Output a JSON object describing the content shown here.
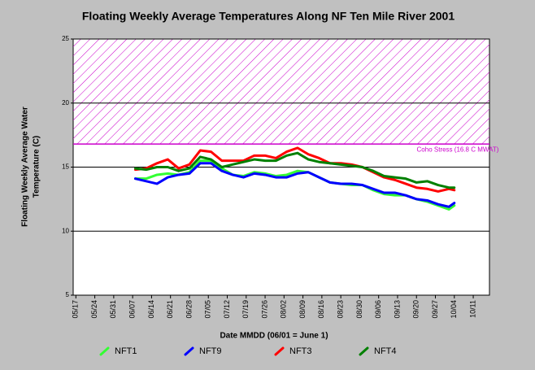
{
  "chart_data": {
    "type": "line",
    "title": "Floating Weekly Average Temperatures Along NF Ten Mile River 2001",
    "y_label": [
      "Floating Weekly Average Water",
      "Temperature (C)"
    ],
    "x_label": "Date MMDD (06/01 = June 1)",
    "ylim": [
      5,
      25
    ],
    "yticks": [
      5,
      10,
      15,
      20,
      25
    ],
    "xlim": [
      136,
      290
    ],
    "xticks": [
      {
        "value": 137,
        "label": "05/17"
      },
      {
        "value": 144,
        "label": "05/24"
      },
      {
        "value": 151,
        "label": "05/31"
      },
      {
        "value": 158,
        "label": "06/07"
      },
      {
        "value": 165,
        "label": "06/14"
      },
      {
        "value": 172,
        "label": "06/21"
      },
      {
        "value": 179,
        "label": "06/28"
      },
      {
        "value": 186,
        "label": "07/05"
      },
      {
        "value": 193,
        "label": "07/12"
      },
      {
        "value": 200,
        "label": "07/19"
      },
      {
        "value": 207,
        "label": "07/26"
      },
      {
        "value": 214,
        "label": "08/02"
      },
      {
        "value": 221,
        "label": "08/09"
      },
      {
        "value": 228,
        "label": "08/16"
      },
      {
        "value": 235,
        "label": "08/23"
      },
      {
        "value": 242,
        "label": "08/30"
      },
      {
        "value": 249,
        "label": "09/06"
      },
      {
        "value": 256,
        "label": "09/13"
      },
      {
        "value": 263,
        "label": "09/20"
      },
      {
        "value": 270,
        "label": "09/27"
      },
      {
        "value": 277,
        "label": "10/04"
      },
      {
        "value": 284,
        "label": "10/11"
      }
    ],
    "grid": true,
    "bands": [
      {
        "from": 16.8,
        "to": 25,
        "label": "Coho Stress (16.8 C MWAT)",
        "color": "#cc00cc"
      }
    ],
    "x": [
      159,
      163,
      167,
      171,
      175,
      179,
      183,
      187,
      191,
      195,
      199,
      203,
      207,
      211,
      215,
      219,
      223,
      227,
      231,
      235,
      239,
      243,
      247,
      251,
      255,
      259,
      263,
      267,
      271,
      275,
      277
    ],
    "series": [
      {
        "name": "NFT1",
        "color": "#33ff33",
        "values": [
          14.1,
          14.1,
          14.4,
          14.5,
          14.4,
          14.6,
          15.5,
          15.5,
          14.9,
          14.4,
          14.3,
          14.6,
          14.5,
          14.3,
          14.4,
          14.7,
          14.6,
          14.2,
          13.8,
          13.7,
          13.6,
          13.6,
          13.2,
          12.9,
          12.8,
          12.8,
          12.5,
          12.3,
          12.0,
          11.7,
          12.0
        ]
      },
      {
        "name": "NFT9",
        "color": "#0000ff",
        "values": [
          14.1,
          13.9,
          13.7,
          14.2,
          14.4,
          14.5,
          15.3,
          15.3,
          14.7,
          14.4,
          14.2,
          14.5,
          14.4,
          14.2,
          14.2,
          14.5,
          14.6,
          14.2,
          13.8,
          13.7,
          13.7,
          13.6,
          13.3,
          13.0,
          13.0,
          12.8,
          12.5,
          12.4,
          12.1,
          11.9,
          12.2
        ]
      },
      {
        "name": "NFT3",
        "color": "#ff0000",
        "values": [
          14.8,
          14.9,
          15.3,
          15.6,
          14.9,
          15.2,
          16.3,
          16.2,
          15.5,
          15.5,
          15.5,
          15.9,
          15.9,
          15.7,
          16.2,
          16.5,
          16.0,
          15.7,
          15.3,
          15.3,
          15.2,
          15.0,
          14.6,
          14.2,
          14.0,
          13.7,
          13.4,
          13.3,
          13.1,
          13.3,
          13.2
        ]
      },
      {
        "name": "NFT4",
        "color": "#008000",
        "values": [
          14.9,
          14.8,
          15.0,
          15.0,
          14.7,
          14.9,
          15.8,
          15.6,
          15.0,
          15.2,
          15.4,
          15.6,
          15.5,
          15.5,
          15.9,
          16.1,
          15.6,
          15.4,
          15.3,
          15.2,
          15.1,
          15.0,
          14.7,
          14.3,
          14.2,
          14.1,
          13.8,
          13.9,
          13.6,
          13.4,
          13.4
        ]
      }
    ]
  }
}
